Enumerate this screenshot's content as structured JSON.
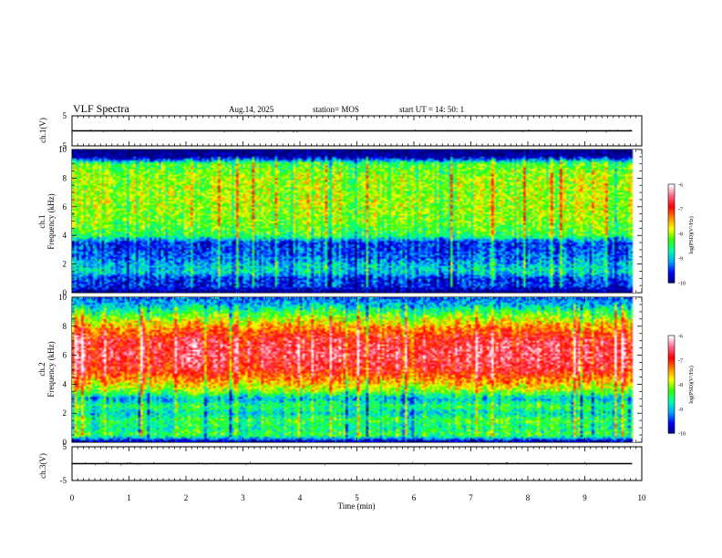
{
  "header": {
    "title": "VLF Spectra",
    "date": "Aug.14, 2025",
    "station": "station= MOS",
    "start": "start  UT  =   14: 50: 1"
  },
  "x_axis": {
    "label": "Time  (min)",
    "ticks": [
      "0",
      "1",
      "2",
      "3",
      "4",
      "5",
      "6",
      "7",
      "8",
      "9",
      "10"
    ],
    "range": [
      0,
      10
    ]
  },
  "panels": {
    "ch1_wave": {
      "ylabel": "ch.1(V)",
      "ticks": [
        "5",
        "-5"
      ],
      "range": [
        -5,
        5
      ]
    },
    "ch1_spec": {
      "ylabel_1": "ch.1",
      "ylabel_2": "Frequency (kHz)",
      "ticks": [
        "10",
        "8",
        "6",
        "4",
        "2",
        "0"
      ],
      "range": [
        0,
        10
      ]
    },
    "ch2_spec": {
      "ylabel_1": "ch.2",
      "ylabel_2": "Frequency (kHz)",
      "ticks": [
        "10",
        "8",
        "6",
        "4",
        "2",
        "0"
      ],
      "range": [
        0,
        10
      ]
    },
    "ch3_wave": {
      "ylabel": "ch.3(V)",
      "ticks": [
        "5",
        "-5"
      ],
      "range": [
        -5,
        5
      ]
    }
  },
  "colorbar": {
    "label": "log(PSD)(V²/Hz)",
    "ticks": [
      "-6",
      "-7",
      "-8",
      "-9",
      "-10"
    ],
    "range": [
      -10,
      -6
    ]
  },
  "colors": {
    "scale": [
      "#00007a",
      "#0000ff",
      "#00aaff",
      "#00ffaa",
      "#33ff00",
      "#ffff00",
      "#ff8800",
      "#ff0000",
      "#ff6688",
      "#ffffff"
    ]
  },
  "chart_data": [
    {
      "type": "line",
      "title": "ch.1(V)",
      "x": [
        0,
        10
      ],
      "y": [
        0,
        0
      ],
      "xlim": [
        0,
        10
      ],
      "ylim": [
        -5,
        5
      ]
    },
    {
      "type": "heatmap",
      "title": "ch.1",
      "ylabel": "Frequency (kHz)",
      "xlim": [
        0,
        10
      ],
      "ylim": [
        0,
        10
      ],
      "clim": [
        -10,
        -6
      ],
      "freq_bands_khz": [
        0,
        0.5,
        1,
        1.5,
        2,
        2.5,
        3,
        3.5,
        4,
        5,
        6,
        7,
        8,
        9,
        9.5,
        10
      ],
      "band_log_psd": [
        -10,
        -9.5,
        -9.5,
        -8.8,
        -9,
        -9.3,
        -9.4,
        -9.5,
        -8.4,
        -8.1,
        -8.0,
        -8.0,
        -8.0,
        -8.3,
        -10,
        -10
      ]
    },
    {
      "type": "heatmap",
      "title": "ch.2",
      "ylabel": "Frequency (kHz)",
      "xlim": [
        0,
        10
      ],
      "ylim": [
        0,
        10
      ],
      "clim": [
        -10,
        -6
      ],
      "freq_bands_khz": [
        0,
        0.5,
        1,
        1.5,
        2,
        2.5,
        3,
        3.5,
        4,
        5,
        6,
        7,
        8,
        9,
        9.5,
        10
      ],
      "band_log_psd": [
        -10,
        -8.3,
        -8.6,
        -8.3,
        -8.8,
        -8.4,
        -9.0,
        -8.1,
        -7.6,
        -6.8,
        -6.6,
        -6.7,
        -7.4,
        -8.4,
        -9.0,
        -9.3
      ]
    },
    {
      "type": "line",
      "title": "ch.3(V)",
      "x": [
        0,
        10
      ],
      "y": [
        0,
        0
      ],
      "xlim": [
        0,
        10
      ],
      "ylim": [
        -5,
        5
      ]
    }
  ]
}
